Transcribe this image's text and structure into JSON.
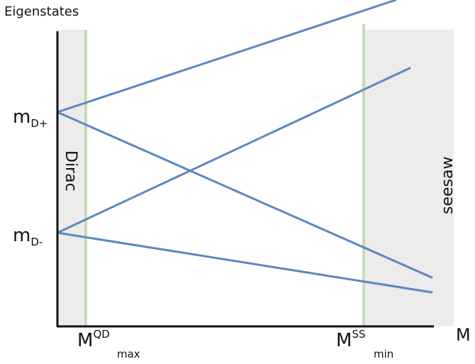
{
  "y_axis_title": "Eigenstates",
  "x_axis_title": "M",
  "y_labels": {
    "m_dplus": {
      "base": "m",
      "sub": "D+"
    },
    "m_dminus": {
      "base": "m",
      "sub": "D-"
    }
  },
  "x_labels": {
    "m_qd_max": {
      "base": "M",
      "sup": "QD",
      "sub": "max"
    },
    "m_ss_min": {
      "base": "M",
      "sup": "SS",
      "sub": "min"
    }
  },
  "regions": {
    "dirac": "Dirac",
    "seesaw": "seesaw"
  },
  "colors": {
    "line": "#5b87c0",
    "region": "#ececec",
    "marker": "#c6dcb6",
    "axis": "#111111"
  }
}
